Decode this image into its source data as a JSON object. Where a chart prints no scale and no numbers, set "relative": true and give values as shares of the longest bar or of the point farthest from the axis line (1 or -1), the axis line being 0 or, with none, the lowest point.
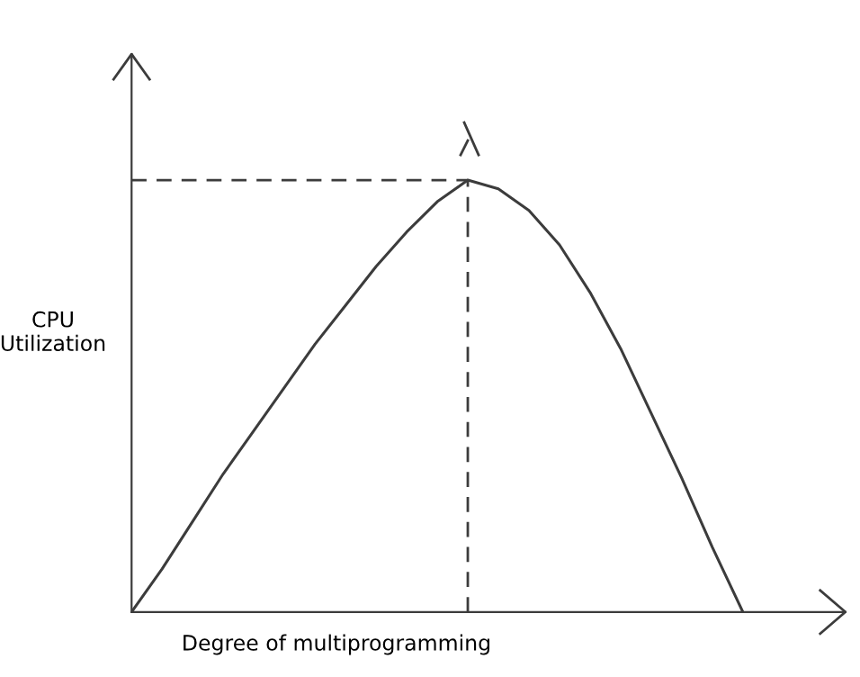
{
  "chart_data": {
    "type": "line",
    "relative": true,
    "xlabel": "Degree of multiprogramming",
    "ylabel": "CPU\nUtilization",
    "categories": [
      null,
      null,
      null,
      null,
      null,
      null,
      null,
      null,
      null,
      null,
      null,
      null,
      null,
      null,
      null,
      null,
      null,
      null,
      null,
      null,
      null
    ],
    "series": [
      {
        "color": "#3c3c3c",
        "values": [
          0,
          0.1,
          0.21,
          0.32,
          0.42,
          0.52,
          0.62,
          0.71,
          0.8,
          0.88,
          0.95,
          1,
          0.98,
          0.93,
          0.85,
          0.74,
          0.61,
          0.46,
          0.31,
          0.15,
          0
        ]
      }
    ],
    "ref_lines": [
      {
        "axis": "y",
        "value": 1,
        "color": "#3c3c3c",
        "line_style": "dashed"
      }
    ],
    "legend": false,
    "marker": "none",
    "line_style": "solid"
  }
}
